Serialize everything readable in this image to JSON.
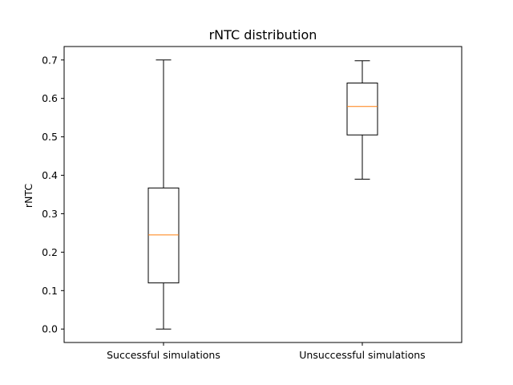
{
  "chart_data": {
    "type": "box",
    "title": "rNTC distribution",
    "xlabel": "",
    "ylabel": "rNTC",
    "ylim": [
      -0.035,
      0.735
    ],
    "yticks": [
      0.0,
      0.1,
      0.2,
      0.3,
      0.4,
      0.5,
      0.6,
      0.7
    ],
    "ytick_labels": [
      "0.0",
      "0.1",
      "0.2",
      "0.3",
      "0.4",
      "0.5",
      "0.6",
      "0.7"
    ],
    "categories": [
      "Successful simulations",
      "Unsuccessful simulations"
    ],
    "boxes": [
      {
        "whisker_low": 0.0,
        "q1": 0.12,
        "median": 0.245,
        "q3": 0.367,
        "whisker_high": 0.7
      },
      {
        "whisker_low": 0.39,
        "q1": 0.505,
        "median": 0.579,
        "q3": 0.64,
        "whisker_high": 0.698
      }
    ],
    "grid": false,
    "colors": {
      "box": "#000000",
      "median": "#ff7f0e"
    }
  }
}
